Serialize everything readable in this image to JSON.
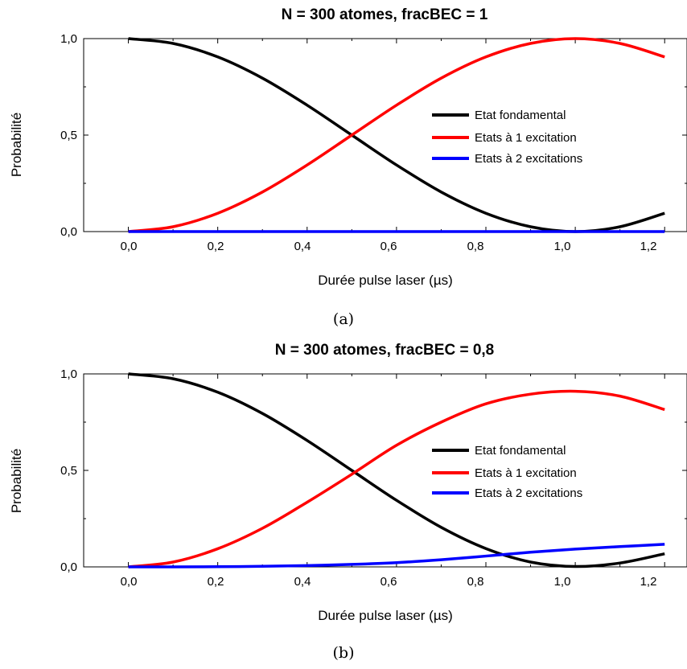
{
  "chart_data": [
    {
      "type": "line",
      "title": "N = 300 atomes, fracBEC = 1",
      "xlabel": "Durée pulse laser (µs)",
      "ylabel": "Probabilité",
      "caption": "(a)",
      "xlim": [
        -0.1,
        1.25
      ],
      "ylim": [
        0.0,
        1.0
      ],
      "x_ticks": [
        "0,0",
        "0,2",
        "0,4",
        "0,6",
        "0,8",
        "1,0",
        "1,2"
      ],
      "y_ticks": [
        "0,0",
        "0,5",
        "1,0"
      ],
      "grid": false,
      "legend_position": "right",
      "x": [
        0.0,
        0.1,
        0.2,
        0.3,
        0.4,
        0.5,
        0.6,
        0.7,
        0.8,
        0.9,
        1.0,
        1.1,
        1.2
      ],
      "series": [
        {
          "name": "Etat fondamental",
          "color": "#000000",
          "values": [
            1.0,
            0.975,
            0.905,
            0.795,
            0.655,
            0.5,
            0.345,
            0.205,
            0.095,
            0.025,
            0.0,
            0.025,
            0.095
          ]
        },
        {
          "name": "Etats à 1 excitation",
          "color": "#ff0000",
          "values": [
            0.0,
            0.025,
            0.095,
            0.205,
            0.345,
            0.5,
            0.655,
            0.795,
            0.905,
            0.975,
            1.0,
            0.975,
            0.905
          ]
        },
        {
          "name": "Etats à 2 excitations",
          "color": "#0000ff",
          "values": [
            0.0,
            0.0,
            0.0,
            0.0,
            0.0,
            0.0,
            0.0,
            0.0,
            0.0,
            0.0,
            0.0,
            0.0,
            0.0
          ]
        }
      ]
    },
    {
      "type": "line",
      "title": "N = 300 atomes, fracBEC = 0,8",
      "xlabel": "Durée pulse laser (µs)",
      "ylabel": "Probabilité",
      "caption": "(b)",
      "xlim": [
        -0.1,
        1.25
      ],
      "ylim": [
        0.0,
        1.0
      ],
      "x_ticks": [
        "0,0",
        "0,2",
        "0,4",
        "0,6",
        "0,8",
        "1,0",
        "1,2"
      ],
      "y_ticks": [
        "0,0",
        "0,5",
        "1,0"
      ],
      "grid": false,
      "legend_position": "right",
      "x": [
        0.0,
        0.1,
        0.2,
        0.3,
        0.4,
        0.5,
        0.6,
        0.7,
        0.8,
        0.9,
        1.0,
        1.1,
        1.2
      ],
      "series": [
        {
          "name": "Etat fondamental",
          "color": "#000000",
          "values": [
            1.0,
            0.975,
            0.905,
            0.795,
            0.655,
            0.5,
            0.345,
            0.205,
            0.095,
            0.025,
            0.002,
            0.02,
            0.068
          ]
        },
        {
          "name": "Etats à 1 excitation",
          "color": "#ff0000",
          "values": [
            0.0,
            0.025,
            0.094,
            0.2,
            0.335,
            0.48,
            0.63,
            0.75,
            0.845,
            0.895,
            0.91,
            0.885,
            0.815
          ]
        },
        {
          "name": "Etats à 2 excitations",
          "color": "#0000ff",
          "values": [
            0.0,
            0.0,
            0.001,
            0.003,
            0.007,
            0.013,
            0.022,
            0.037,
            0.056,
            0.076,
            0.092,
            0.105,
            0.117
          ]
        }
      ]
    }
  ]
}
